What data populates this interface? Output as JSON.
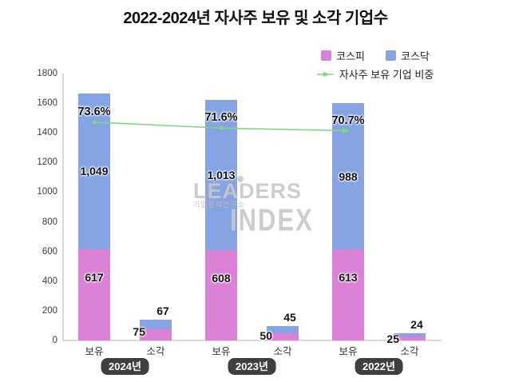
{
  "title": "2022-2024년 자사주 보유 및 소각 기업수",
  "legend": {
    "kospi": "코스피",
    "kosdaq": "코스닥",
    "line": "자사주 보유 기업 비중"
  },
  "colors": {
    "kospi": "#DC82D6",
    "kosdaq": "#86A3E3",
    "line": "#7CD87C",
    "badge_bg": "#3F3F3F",
    "axis": "#D9D9D9"
  },
  "watermark": {
    "line1": "LEADERS",
    "sub": "기업분석연구소",
    "line2": "INDEX"
  },
  "chart_data": {
    "type": "bar",
    "stacked": true,
    "title": "2022-2024년 자사주 보유 및 소각 기업수",
    "group_labels": [
      "2024년",
      "2023년",
      "2022년"
    ],
    "categories": [
      "보유",
      "소각",
      "보유",
      "소각",
      "보유",
      "소각"
    ],
    "series": [
      {
        "name": "코스피",
        "color": "#DC82D6",
        "values": [
          617,
          75,
          608,
          50,
          613,
          25
        ]
      },
      {
        "name": "코스닥",
        "color": "#86A3E3",
        "values": [
          1049,
          67,
          1013,
          45,
          988,
          24
        ]
      }
    ],
    "kospi_labels": [
      "617",
      "75",
      "608",
      "50",
      "613",
      "25"
    ],
    "kosdaq_labels": [
      "1,049",
      "67",
      "1,013",
      "45",
      "988",
      "24"
    ],
    "line_series": {
      "name": "자사주 보유 기업 비중",
      "color": "#7CD87C",
      "values_pct": [
        73.6,
        71.6,
        70.7
      ],
      "labels": [
        "73.6%",
        "71.6%",
        "70.7%"
      ],
      "on_category": "보유"
    },
    "ylim": [
      0,
      1800
    ],
    "y_ticks": [
      0,
      200,
      400,
      600,
      800,
      1000,
      1200,
      1400,
      1600,
      1800
    ],
    "grid": false,
    "legend_position": "top-right"
  }
}
